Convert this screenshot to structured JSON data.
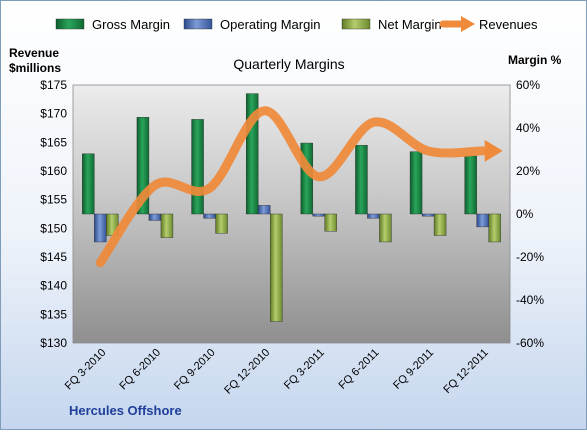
{
  "chart_data": {
    "type": "bar",
    "title": "Quarterly Margins",
    "company": "Hercules Offshore",
    "categories": [
      "FQ 3-2010",
      "FQ 6-2010",
      "FQ 9-2010",
      "FQ 12-2010",
      "FQ 3-2011",
      "FQ 6-2011",
      "FQ 9-2011",
      "FQ 12-2011"
    ],
    "left_axis": {
      "label_line1": "Revenue",
      "label_line2": "$millions",
      "min": 130,
      "max": 175,
      "step": 5,
      "ticks": [
        "$130",
        "$135",
        "$140",
        "$145",
        "$150",
        "$155",
        "$160",
        "$165",
        "$170",
        "$175"
      ]
    },
    "right_axis": {
      "label": "Margin %",
      "min": -60,
      "max": 60,
      "step": 20,
      "ticks": [
        "-60%",
        "-40%",
        "-20%",
        "0%",
        "20%",
        "40%",
        "60%"
      ]
    },
    "series": [
      {
        "name": "Gross Margin",
        "axis": "right",
        "kind": "bar",
        "color": "#1e8a4a",
        "values": [
          28,
          45,
          44,
          56,
          33,
          32,
          29,
          27
        ]
      },
      {
        "name": "Operating Margin",
        "axis": "right",
        "kind": "bar",
        "color": "#4f6fb6",
        "values": [
          -13,
          -3,
          -2,
          4,
          -1,
          -2,
          -1,
          -6
        ]
      },
      {
        "name": "Net Margin",
        "axis": "right",
        "kind": "bar",
        "color": "#90ad48",
        "values": [
          -10,
          -11,
          -9,
          -50,
          -8,
          -13,
          -10,
          -13
        ]
      },
      {
        "name": "Revenues",
        "axis": "left",
        "kind": "line",
        "color": "#ef8a3a",
        "values": [
          144,
          157.5,
          157,
          170.5,
          159,
          168.5,
          163.5,
          163.5
        ]
      }
    ],
    "legend_position": "top",
    "grid": false
  }
}
